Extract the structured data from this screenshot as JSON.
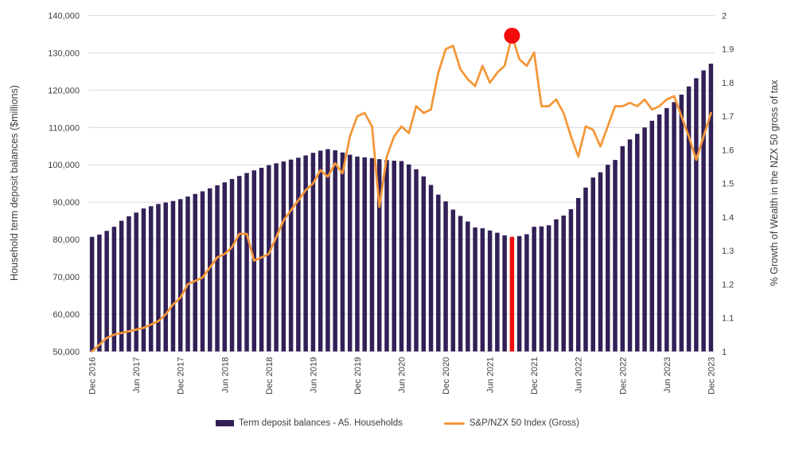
{
  "chart_data": {
    "type": "combo-bar-line",
    "title": "",
    "categories": [
      "Dec 2016",
      "Jan 2017",
      "Feb 2017",
      "Mar 2017",
      "Apr 2017",
      "May 2017",
      "Jun 2017",
      "Jul 2017",
      "Aug 2017",
      "Sep 2017",
      "Oct 2017",
      "Nov 2017",
      "Dec 2017",
      "Jan 2018",
      "Feb 2018",
      "Mar 2018",
      "Apr 2018",
      "May 2018",
      "Jun 2018",
      "Jul 2018",
      "Aug 2018",
      "Sep 2018",
      "Oct 2018",
      "Nov 2018",
      "Dec 2018",
      "Jan 2019",
      "Feb 2019",
      "Mar 2019",
      "Apr 2019",
      "May 2019",
      "Jun 2019",
      "Jul 2019",
      "Aug 2019",
      "Sep 2019",
      "Oct 2019",
      "Nov 2019",
      "Dec 2019",
      "Jan 2020",
      "Feb 2020",
      "Mar 2020",
      "Apr 2020",
      "May 2020",
      "Jun 2020",
      "Jul 2020",
      "Aug 2020",
      "Sep 2020",
      "Oct 2020",
      "Nov 2020",
      "Dec 2020",
      "Jan 2021",
      "Feb 2021",
      "Mar 2021",
      "Apr 2021",
      "May 2021",
      "Jun 2021",
      "Jul 2021",
      "Aug 2021",
      "Sep 2021",
      "Oct 2021",
      "Nov 2021",
      "Dec 2021",
      "Jan 2022",
      "Feb 2022",
      "Mar 2022",
      "Apr 2022",
      "May 2022",
      "Jun 2022",
      "Jul 2022",
      "Aug 2022",
      "Sep 2022",
      "Oct 2022",
      "Nov 2022",
      "Dec 2022",
      "Jan 2023",
      "Feb 2023",
      "Mar 2023",
      "Apr 2023",
      "May 2023",
      "Jun 2023",
      "Jul 2023",
      "Aug 2023",
      "Sep 2023",
      "Oct 2023",
      "Nov 2023",
      "Dec 2023"
    ],
    "x_tick_interval": 6,
    "x_tick_labels": [
      "Dec 2016",
      "Jun 2017",
      "Dec 2017",
      "Jun 2018",
      "Dec 2018",
      "Jun 2019",
      "Dec 2019",
      "Jun 2020",
      "Dec 2020",
      "Jun 2021",
      "Dec 2021",
      "Jun 2022",
      "Dec 2022",
      "Jun 2023",
      "Dec 2023"
    ],
    "series": [
      {
        "name": "Term deposit balances - A5. Households",
        "type": "bar",
        "axis": "left",
        "color": "#322057",
        "values": [
          80700,
          81300,
          82300,
          83400,
          85000,
          86200,
          87200,
          88300,
          88900,
          89500,
          89900,
          90300,
          90800,
          91500,
          92200,
          92900,
          93700,
          94500,
          95300,
          96200,
          97000,
          97800,
          98500,
          99200,
          99900,
          100400,
          100900,
          101400,
          101900,
          102500,
          103200,
          103800,
          104200,
          103900,
          103300,
          102700,
          102200,
          102000,
          101800,
          101500,
          101300,
          101100,
          101000,
          100100,
          98800,
          96900,
          94600,
          92000,
          90200,
          88000,
          86300,
          84800,
          83200,
          83000,
          82400,
          81800,
          81100,
          80700,
          80900,
          81400,
          83400,
          83500,
          83800,
          85400,
          86400,
          88100,
          91100,
          93900,
          96600,
          98000,
          100000,
          101300,
          105000,
          106800,
          108300,
          110000,
          111800,
          113500,
          115200,
          116800,
          118800,
          121000,
          123200,
          125300,
          127100
        ]
      },
      {
        "name": "S&P/NZX 50 Index (Gross)",
        "type": "line",
        "axis": "right",
        "color": "#F49638",
        "values": [
          1.0,
          1.02,
          1.04,
          1.05,
          1.055,
          1.06,
          1.065,
          1.07,
          1.08,
          1.09,
          1.11,
          1.14,
          1.16,
          1.2,
          1.21,
          1.22,
          1.25,
          1.28,
          1.29,
          1.31,
          1.35,
          1.35,
          1.27,
          1.28,
          1.29,
          1.34,
          1.39,
          1.42,
          1.45,
          1.48,
          1.5,
          1.54,
          1.52,
          1.56,
          1.53,
          1.64,
          1.7,
          1.71,
          1.67,
          1.43,
          1.58,
          1.64,
          1.67,
          1.65,
          1.73,
          1.71,
          1.72,
          1.83,
          1.9,
          1.91,
          1.84,
          1.81,
          1.79,
          1.85,
          1.8,
          1.83,
          1.85,
          1.94,
          1.87,
          1.85,
          1.89,
          1.73,
          1.73,
          1.75,
          1.71,
          1.64,
          1.58,
          1.67,
          1.66,
          1.61,
          1.67,
          1.73,
          1.73,
          1.74,
          1.73,
          1.75,
          1.72,
          1.73,
          1.75,
          1.76,
          1.7,
          1.64,
          1.57,
          1.64,
          1.71
        ]
      }
    ],
    "left_axis": {
      "title": "Household term deposit balances ($millions)",
      "min": 50000,
      "max": 140000,
      "step": 10000,
      "tick_labels": [
        "140,000",
        "130,000",
        "120,000",
        "110,000",
        "100,000",
        "90,000",
        "80,000",
        "70,000",
        "60,000",
        "50,000"
      ]
    },
    "right_axis": {
      "title": "% Growth of Wealth in the NZX 50 gross of tax",
      "min": 1,
      "max": 2,
      "step": 0.1,
      "tick_labels": [
        "2",
        "1.9",
        "1.8",
        "1.7",
        "1.6",
        "1.5",
        "1.4",
        "1.3",
        "1.2",
        "1.1",
        "1"
      ]
    },
    "highlight": {
      "category": "Sep 2021",
      "index": 57,
      "bar_value": 80700,
      "bar_color": "#F30B0B",
      "dot_value": 1.94,
      "dot_color": "#F30B0B",
      "dot_radius": 10
    },
    "grid_color": "#D9D9D9",
    "text_color": "#404040",
    "legend": [
      {
        "label": "Term deposit balances - A5. Households",
        "swatch": "bar",
        "color": "#322057"
      },
      {
        "label": "S&P/NZX 50 Index (Gross)",
        "swatch": "line",
        "color": "#F49638"
      }
    ]
  }
}
